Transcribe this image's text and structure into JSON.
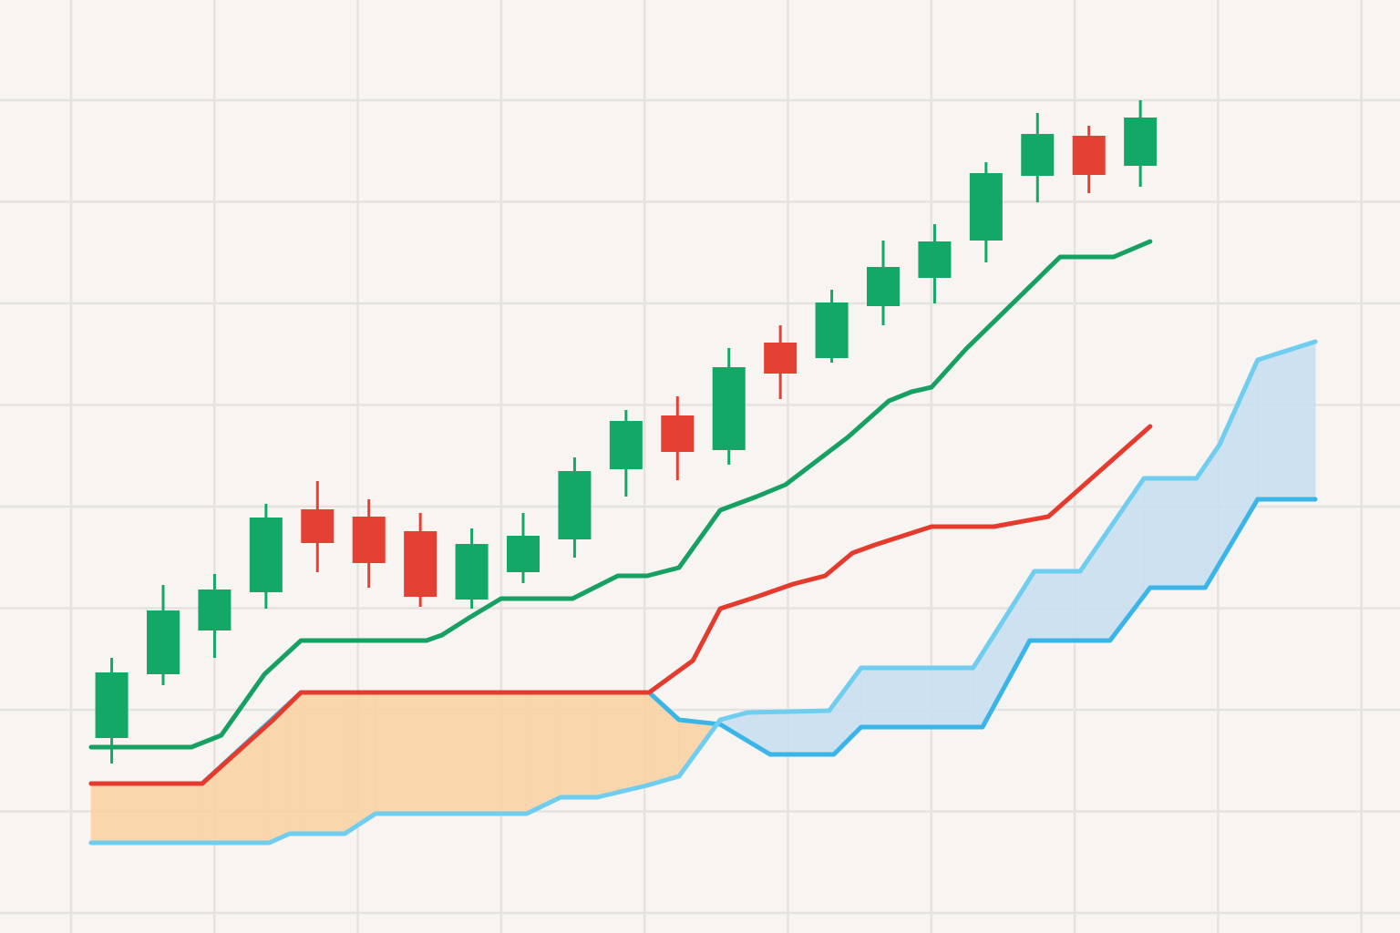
{
  "chart_data": {
    "type": "candlestick",
    "xlim": [
      -0.4,
      23.4
    ],
    "ylim": [
      0,
      1024
    ],
    "grid": true,
    "up_color": "#14a866",
    "down_color": "#e54034",
    "x": [
      0,
      1,
      2,
      3,
      4,
      5,
      6,
      7,
      8,
      9,
      10,
      11,
      12,
      13,
      14,
      15,
      16,
      17,
      18,
      19,
      20
    ],
    "open": [
      214,
      284,
      332,
      374,
      465,
      457,
      441,
      366,
      396,
      432,
      509,
      568,
      530,
      648,
      631,
      688,
      719,
      760,
      831,
      875,
      842
    ],
    "high": [
      302,
      382,
      394,
      471,
      496,
      476,
      461,
      444,
      461,
      522,
      574,
      589,
      642,
      667,
      706,
      760,
      778,
      846,
      900,
      886,
      914
    ],
    "low": [
      186,
      272,
      302,
      356,
      396,
      379,
      358,
      356,
      384,
      412,
      479,
      497,
      514,
      586,
      626,
      667,
      691,
      736,
      802,
      812,
      819
    ],
    "close": [
      286,
      354,
      377,
      456,
      428,
      406,
      369,
      427,
      436,
      507,
      562,
      528,
      621,
      614,
      692,
      731,
      759,
      834,
      877,
      832,
      895
    ],
    "series": [
      {
        "color": "#16a062",
        "x": [
          -0.4,
          1.55,
          2.13,
          2.97,
          3.68,
          6.12,
          6.42,
          6.95,
          7.57,
          8.96,
          9.84,
          10.41,
          11.03,
          11.83,
          12.54,
          13.1,
          14.31,
          15.11,
          15.55,
          15.94,
          16.61,
          18.44,
          19.48,
          20.19
        ],
        "values": [
          204,
          204,
          217,
          284,
          321,
          321,
          327,
          346,
          367,
          367,
          392,
          392,
          401,
          464,
          479,
          492,
          544,
          584,
          594,
          599,
          641,
          742,
          742,
          759
        ]
      },
      {
        "color": "#e53b2e",
        "x": [
          -0.4,
          1.76,
          3.14,
          3.68,
          10.45,
          11.3,
          11.83,
          12.54,
          13.25,
          13.87,
          14.4,
          14.84,
          15.94,
          17.15,
          18.21,
          20.19
        ],
        "values": [
          164,
          164,
          234,
          264,
          264,
          299,
          356,
          369,
          383,
          392,
          417,
          426,
          446,
          446,
          457,
          556
        ]
      }
    ],
    "cloud": {
      "fill_colors": [
        "#fbd3a5",
        "#c9e0f0"
      ],
      "lines": [
        {
          "color": "#3bb5e8",
          "x": [
            -0.4,
            1.76,
            3.68,
            10.45,
            11.03,
            11.83,
            12.8,
            14.04,
            14.57,
            16.93,
            17.85,
            19.41,
            20.19,
            21.26,
            22.28,
            23.4
          ],
          "values": [
            164,
            164,
            264,
            264,
            234,
            229,
            196,
            196,
            226,
            226,
            321,
            321,
            379,
            379,
            476,
            476
          ]
        },
        {
          "color": "#6fcdf0",
          "x": [
            -0.4,
            3.06,
            3.46,
            4.53,
            5.13,
            8.07,
            8.73,
            9.44,
            10.41,
            11.03,
            11.83,
            12.36,
            13.95,
            14.57,
            16.75,
            17.94,
            18.83,
            20.07,
            21.09,
            21.54,
            22.28,
            23.4
          ],
          "values": [
            99,
            99,
            109,
            109,
            131,
            131,
            149,
            149,
            162,
            172,
            234,
            242,
            244,
            291,
            291,
            397,
            397,
            499,
            499,
            536,
            629,
            649
          ]
        }
      ]
    }
  }
}
